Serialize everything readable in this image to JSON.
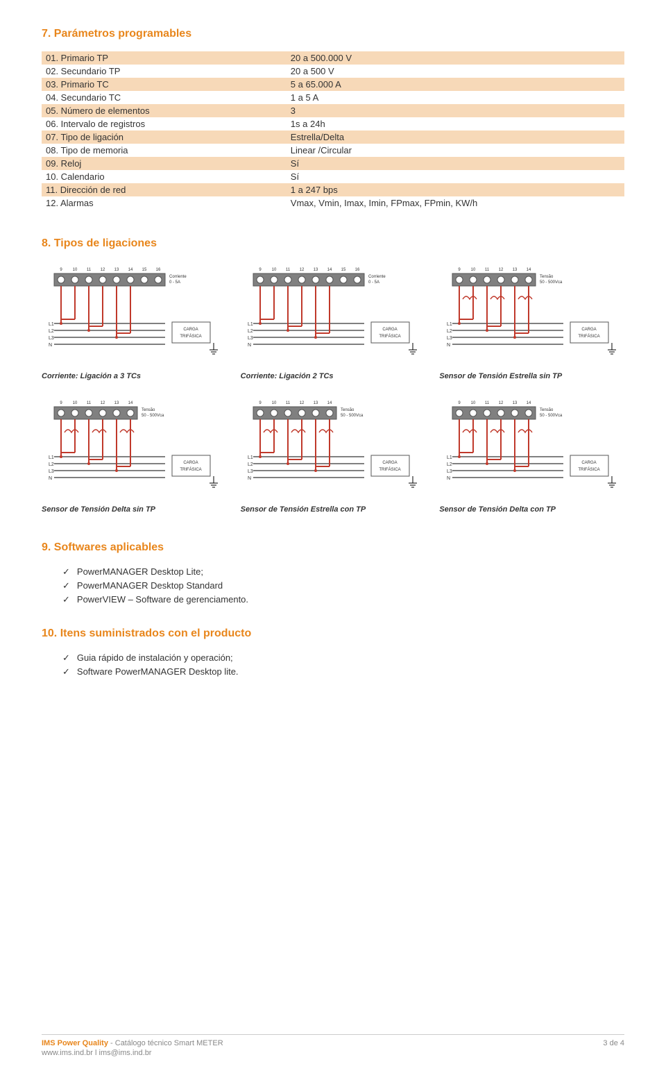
{
  "colors": {
    "accent": "#e8861c",
    "row_odd_bg": "#f7d9b8",
    "row_even_bg": "#ffffff",
    "text": "#333333",
    "footer_text": "#888888",
    "diagram_box": "#808080",
    "diagram_line_red": "#c0392b",
    "diagram_line_black": "#000000"
  },
  "section7": {
    "heading": "7.  Parámetros programables",
    "rows": [
      {
        "label": "01. Primario TP",
        "value": "20 a 500.000 V"
      },
      {
        "label": "02. Secundario TP",
        "value": "20 a 500 V"
      },
      {
        "label": "03. Primario TC",
        "value": "5 a 65.000 A"
      },
      {
        "label": "04. Secundario TC",
        "value": "1 a 5 A"
      },
      {
        "label": "05. Número de elementos",
        "value": "3"
      },
      {
        "label": "06. Intervalo de registros",
        "value": "1s a 24h"
      },
      {
        "label": "07. Tipo de ligación",
        "value": "Estrella/Delta"
      },
      {
        "label": "08. Tipo de memoria",
        "value": "Linear /Circular"
      },
      {
        "label": "09. Reloj",
        "value": "Sí"
      },
      {
        "label": "10. Calendario",
        "value": "Sí"
      },
      {
        "label": "11. Dirección de red",
        "value": "1 a 247 bps"
      },
      {
        "label": "12. Alarmas",
        "value": "Vmax, Vmin, Imax, Imin, FPmax, FPmin, KW/h"
      }
    ]
  },
  "section8": {
    "heading": "8.  Tipos de ligaciones",
    "row1": [
      {
        "caption": "Corriente: Ligación a 3 TCs",
        "type": "current",
        "terminals": 8,
        "side_label": "Corriente\n0 - 5A",
        "load_label": "CARGA\nTRIFÁSICA"
      },
      {
        "caption": "Corriente: Ligación 2 TCs",
        "type": "current",
        "terminals": 8,
        "side_label": "Corriente\n0 - 5A",
        "load_label": "CARGA\nTRIFÁSICA"
      },
      {
        "caption": "Sensor de Tensión Estrella sin TP",
        "type": "voltage",
        "terminals": 6,
        "side_label": "Tensão\n50 - 500Vca",
        "load_label": "CARGA\nTRIFÁSICA"
      }
    ],
    "row2": [
      {
        "caption": "Sensor de Tensión Delta sin TP",
        "type": "voltage",
        "terminals": 6,
        "side_label": "Tensão\n50 - 500Vca",
        "load_label": "CARGA\nTRIFÁSICA"
      },
      {
        "caption": "Sensor de Tensión Estrella con TP",
        "type": "voltage",
        "terminals": 6,
        "side_label": "Tensão\n50 - 500Vca",
        "load_label": "CARGA\nTRIFÁSICA"
      },
      {
        "caption": "Sensor de Tensión Delta con TP",
        "type": "voltage",
        "terminals": 6,
        "side_label": "Tensão\n50 - 500Vca",
        "load_label": "CARGA\nTRIFÁSICA"
      }
    ]
  },
  "section9": {
    "heading": "9.  Softwares aplicables",
    "items": [
      "PowerMANAGER Desktop Lite;",
      "PowerMANAGER Desktop Standard",
      "PowerVIEW – Software de gerenciamento."
    ]
  },
  "section10": {
    "heading": "10.  Itens suministrados con el producto",
    "items": [
      "Guia rápido de instalación y operación;",
      "Software PowerMANAGER Desktop lite."
    ]
  },
  "footer": {
    "brand": "IMS Power Quality",
    "title": "  -  Catálogo técnico Smart METER",
    "contact": "www.ims.ind.br  l  ims@ims.ind.br",
    "page": "3 de 4"
  }
}
